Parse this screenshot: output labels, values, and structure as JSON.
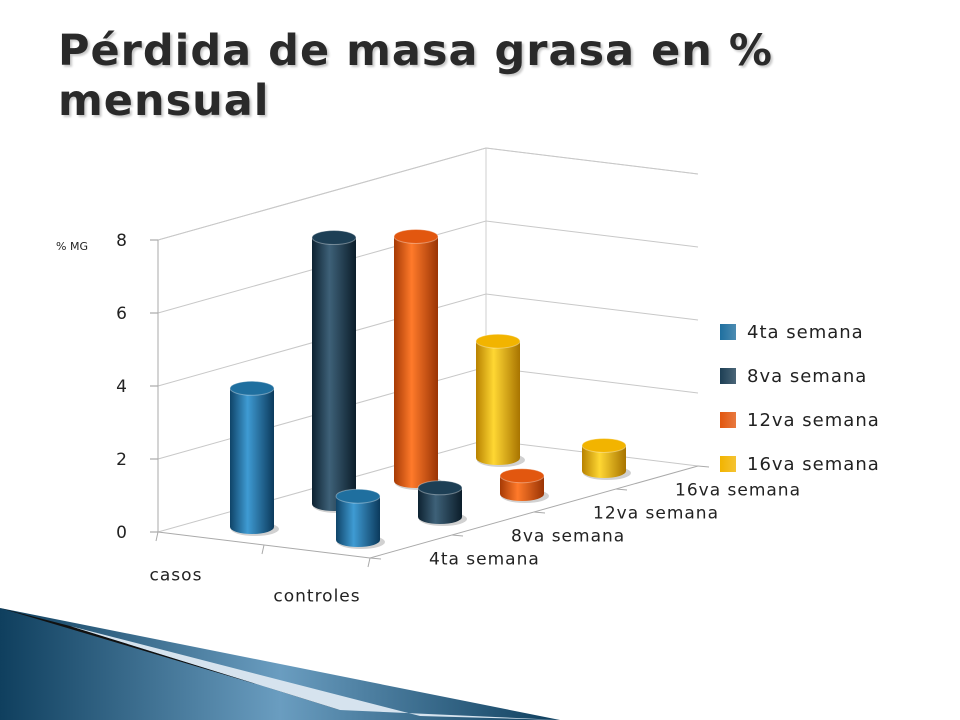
{
  "title": "Pérdida de masa grasa en % mensual",
  "chart_data": {
    "type": "bar",
    "title": "",
    "ylabel": "% MG",
    "xlabel": "",
    "categories": [
      "casos",
      "controles"
    ],
    "yticks": [
      0,
      2,
      4,
      6,
      8
    ],
    "ylim": [
      0,
      8
    ],
    "grid": true,
    "legend": "right",
    "depth_labels": [
      "4ta semana",
      "8va semana",
      "12va semana",
      "16va semana"
    ],
    "series": [
      {
        "name": "4ta semana",
        "values": [
          3.8,
          1.2
        ],
        "color": "#1f6f9f"
      },
      {
        "name": "8va semana",
        "values": [
          7.3,
          0.8
        ],
        "color": "#1d3f55"
      },
      {
        "name": "12va semana",
        "values": [
          6.7,
          0.5
        ],
        "color": "#e2570f"
      },
      {
        "name": "16va semana",
        "values": [
          3.2,
          0.7
        ],
        "color": "#f2b400"
      }
    ]
  }
}
